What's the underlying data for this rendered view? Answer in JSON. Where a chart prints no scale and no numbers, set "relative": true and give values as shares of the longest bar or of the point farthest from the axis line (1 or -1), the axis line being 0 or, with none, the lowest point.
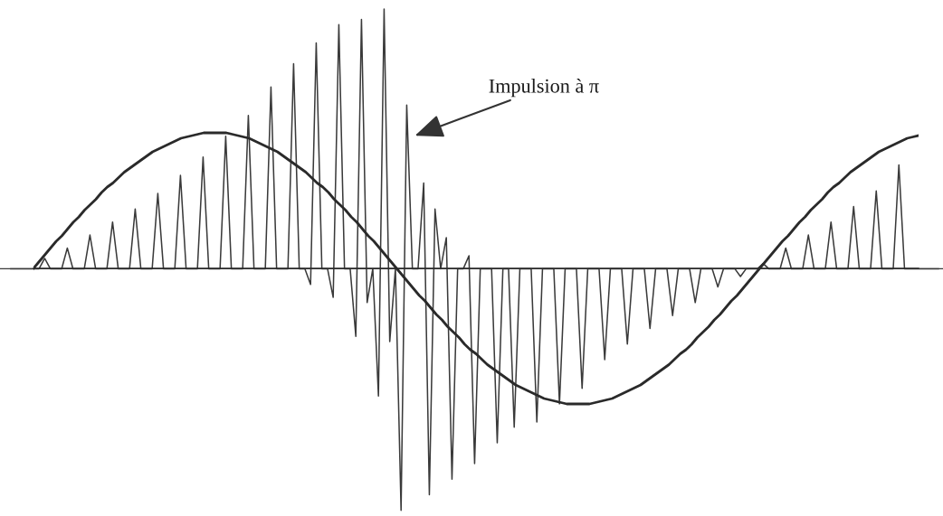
{
  "chart_data": [
    {
      "type": "line",
      "relative": true,
      "legend": false,
      "categories": [
        null,
        null,
        null,
        null,
        null,
        null,
        null,
        null,
        null,
        null,
        null,
        null,
        null,
        null,
        null,
        null,
        null,
        null,
        null,
        null,
        null,
        null,
        null,
        null,
        null,
        null,
        null,
        null,
        null,
        null,
        null,
        null,
        null,
        null,
        null,
        null,
        null,
        null,
        null,
        null,
        null,
        null,
        null,
        null,
        null,
        null,
        null,
        null,
        null,
        null,
        null,
        null,
        null,
        null,
        null,
        null,
        null,
        null,
        null,
        null,
        null,
        null,
        null,
        null,
        null,
        null,
        null,
        null,
        null,
        null,
        null,
        null,
        null,
        null,
        null,
        null,
        null,
        null,
        null,
        null,
        null,
        null,
        null,
        null,
        null,
        null,
        null,
        null,
        null,
        null,
        null,
        null,
        null,
        null,
        null,
        null,
        null,
        null,
        null,
        null,
        null,
        null,
        null,
        null,
        null,
        null,
        null,
        null,
        null,
        null,
        null,
        null,
        null,
        null,
        null,
        null,
        null,
        null,
        null,
        null,
        null,
        null,
        null,
        null,
        null,
        null,
        null,
        null,
        null,
        null,
        null,
        null,
        null,
        null,
        null,
        null,
        null,
        null,
        null,
        null,
        null,
        null,
        null,
        null,
        null,
        null,
        null,
        null,
        null,
        null,
        null,
        null,
        null,
        null,
        null,
        null,
        null,
        null,
        null,
        null,
        null,
        null,
        null,
        null,
        null
      ],
      "series": [
        {
          "color": "#3a3a3a",
          "values": [
            0,
            0,
            0,
            0,
            0,
            0,
            0.04,
            0,
            0,
            0,
            0.08,
            0,
            0,
            0,
            0.13,
            0,
            0,
            0,
            0.18,
            0,
            0,
            0,
            0.23,
            0,
            0,
            0,
            0.29,
            0,
            0,
            0,
            0.36,
            0,
            0,
            0,
            0.43,
            0,
            0,
            0,
            0.51,
            0,
            0,
            0,
            0.59,
            0,
            0,
            0,
            0.7,
            0,
            0,
            0,
            0.79,
            0,
            0,
            -0.06,
            0.87,
            0,
            0,
            -0.11,
            0.94,
            0,
            0,
            -0.26,
            0.96,
            -0.13,
            0,
            -0.49,
            1,
            -0.28,
            0,
            -0.93,
            0.63,
            0,
            0,
            0.33,
            -0.87,
            0.23,
            0,
            0.12,
            -0.81,
            0,
            0,
            0.05,
            -0.75,
            0,
            0,
            0,
            -0.67,
            0,
            0,
            -0.61,
            0,
            0,
            0,
            -0.59,
            0,
            0,
            0,
            -0.52,
            0,
            0,
            0,
            -0.46,
            0,
            0,
            0,
            -0.35,
            0,
            0,
            0,
            -0.29,
            0,
            0,
            0,
            -0.23,
            0,
            0,
            0,
            -0.18,
            0,
            0,
            0,
            -0.13,
            0,
            0,
            0,
            -0.07,
            0,
            0,
            0,
            -0.03,
            0,
            0,
            0,
            0.02,
            0,
            0,
            0,
            0.08,
            0,
            0,
            0,
            0.13,
            0,
            0,
            0,
            0.18,
            0,
            0,
            0,
            0.24,
            0,
            0,
            0,
            0.3,
            0,
            0,
            0,
            0.4,
            0,
            0,
            0,
            0,
            0,
            0,
            0
          ]
        }
      ],
      "annotations": [
        "Impulsion à π"
      ]
    },
    {
      "type": "line",
      "relative": true,
      "legend": false,
      "categories": [
        null,
        null,
        null,
        null,
        null,
        null,
        null,
        null,
        null,
        null,
        null,
        null,
        null,
        null,
        null,
        null,
        null,
        null,
        null,
        null,
        null,
        null,
        null,
        null,
        null,
        null,
        null,
        null,
        null,
        null,
        null,
        null,
        null,
        null,
        null,
        null,
        null,
        null,
        null,
        null,
        null,
        null,
        null,
        null,
        null,
        null,
        null,
        null,
        null,
        null,
        null,
        null,
        null,
        null,
        null,
        null,
        null,
        null,
        null,
        null,
        null,
        null,
        null,
        null,
        null,
        null,
        null,
        null,
        null,
        null,
        null,
        null,
        null,
        null,
        null,
        null,
        null,
        null,
        null,
        null,
        null,
        null,
        null,
        null,
        null,
        null,
        null,
        null,
        null,
        null,
        null,
        null,
        null,
        null,
        null,
        null,
        null,
        null,
        null,
        null,
        null,
        null,
        null,
        null,
        null,
        null,
        null,
        null,
        null,
        null,
        null,
        null,
        null,
        null,
        null,
        null,
        null,
        null,
        null,
        null,
        null,
        null,
        null,
        null,
        null,
        null,
        null,
        null,
        null,
        null,
        null,
        null,
        null,
        null,
        null,
        null,
        null,
        null,
        null,
        null,
        null,
        null,
        null,
        null,
        null,
        null,
        null,
        null,
        null,
        null,
        null,
        null,
        null,
        null,
        null,
        null,
        null
      ],
      "series": [
        {
          "color": "#2a2a2a",
          "values": [
            0,
            0.05,
            0.1,
            0.15,
            0.2,
            0.24,
            0.29,
            0.34,
            0.38,
            0.43,
            0.47,
            0.51,
            0.56,
            0.6,
            0.63,
            0.67,
            0.71,
            0.74,
            0.77,
            0.8,
            0.83,
            0.86,
            0.88,
            0.9,
            0.92,
            0.94,
            0.96,
            0.97,
            0.98,
            0.99,
            1,
            1,
            1,
            1,
            1,
            0.99,
            0.98,
            0.97,
            0.96,
            0.94,
            0.92,
            0.9,
            0.88,
            0.86,
            0.83,
            0.8,
            0.77,
            0.74,
            0.71,
            0.67,
            0.63,
            0.6,
            0.56,
            0.51,
            0.47,
            0.43,
            0.38,
            0.34,
            0.29,
            0.24,
            0.2,
            0.15,
            0.1,
            0.05,
            0,
            -0.05,
            -0.1,
            -0.15,
            -0.2,
            -0.24,
            -0.29,
            -0.34,
            -0.38,
            -0.43,
            -0.47,
            -0.51,
            -0.56,
            -0.6,
            -0.63,
            -0.67,
            -0.71,
            -0.74,
            -0.77,
            -0.8,
            -0.83,
            -0.86,
            -0.88,
            -0.9,
            -0.92,
            -0.94,
            -0.96,
            -0.97,
            -0.98,
            -0.99,
            -1,
            -1,
            -1,
            -1,
            -1,
            -0.99,
            -0.98,
            -0.97,
            -0.96,
            -0.94,
            -0.92,
            -0.9,
            -0.88,
            -0.86,
            -0.83,
            -0.8,
            -0.77,
            -0.74,
            -0.71,
            -0.67,
            -0.63,
            -0.6,
            -0.56,
            -0.51,
            -0.47,
            -0.43,
            -0.38,
            -0.34,
            -0.29,
            -0.24,
            -0.2,
            -0.15,
            -0.1,
            -0.05,
            0,
            0.05,
            0.1,
            0.15,
            0.2,
            0.24,
            0.29,
            0.34,
            0.38,
            0.43,
            0.47,
            0.51,
            0.56,
            0.6,
            0.63,
            0.67,
            0.71,
            0.74,
            0.77,
            0.8,
            0.83,
            0.86,
            0.88,
            0.9,
            0.92,
            0.94,
            0.96,
            0.97,
            0.98
          ]
        }
      ]
    }
  ]
}
